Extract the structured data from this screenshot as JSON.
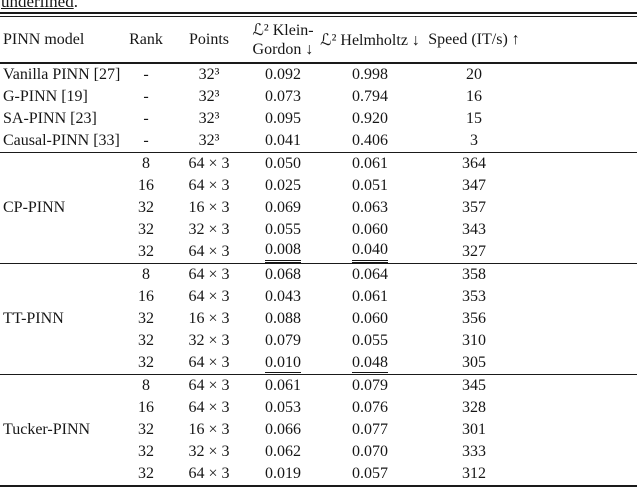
{
  "colors": {
    "background": "#ffffff",
    "text": "#161616",
    "rule": "#1a1a1a"
  },
  "caption": {
    "tail_word": "underlined",
    "period": "."
  },
  "table": {
    "headers": {
      "model": "PINN model",
      "rank": "Rank",
      "points": "Points",
      "kg_line1": "ℒ² Klein-",
      "kg_line2": "Gordon ↓",
      "helmholtz": "ℒ² Helmholtz ↓",
      "speed": "Speed (IT/s) ↑"
    },
    "groups": [
      {
        "rows": [
          {
            "model": "Vanilla PINN [27]",
            "rank": "-",
            "points": "32³",
            "kg": "0.092",
            "helmholtz": "0.998",
            "speed": "20"
          },
          {
            "model": "G-PINN [19]",
            "rank": "-",
            "points": "32³",
            "kg": "0.073",
            "helmholtz": "0.794",
            "speed": "16"
          },
          {
            "model": "SA-PINN [23]",
            "rank": "-",
            "points": "32³",
            "kg": "0.095",
            "helmholtz": "0.920",
            "speed": "15"
          },
          {
            "model": "Causal-PINN [33]",
            "rank": "-",
            "points": "32³",
            "kg": "0.041",
            "helmholtz": "0.406",
            "speed": "3"
          }
        ]
      },
      {
        "model": "CP-PINN",
        "rows": [
          {
            "rank": "8",
            "points": "64 × 3",
            "kg": "0.050",
            "helmholtz": "0.061",
            "speed": "364"
          },
          {
            "rank": "16",
            "points": "64 × 3",
            "kg": "0.025",
            "helmholtz": "0.051",
            "speed": "347"
          },
          {
            "rank": "32",
            "points": "16 × 3",
            "kg": "0.069",
            "helmholtz": "0.063",
            "speed": "357"
          },
          {
            "rank": "32",
            "points": "32 × 3",
            "kg": "0.055",
            "helmholtz": "0.060",
            "speed": "343"
          },
          {
            "rank": "32",
            "points": "64 × 3",
            "kg": "0.008",
            "helmholtz": "0.040",
            "speed": "327",
            "kg_underline": "double",
            "helmholtz_underline": "double"
          }
        ]
      },
      {
        "model": "TT-PINN",
        "rows": [
          {
            "rank": "8",
            "points": "64 × 3",
            "kg": "0.068",
            "helmholtz": "0.064",
            "speed": "358"
          },
          {
            "rank": "16",
            "points": "64 × 3",
            "kg": "0.043",
            "helmholtz": "0.061",
            "speed": "353"
          },
          {
            "rank": "32",
            "points": "16 × 3",
            "kg": "0.088",
            "helmholtz": "0.060",
            "speed": "356"
          },
          {
            "rank": "32",
            "points": "32 × 3",
            "kg": "0.079",
            "helmholtz": "0.055",
            "speed": "310"
          },
          {
            "rank": "32",
            "points": "64 × 3",
            "kg": "0.010",
            "helmholtz": "0.048",
            "speed": "305",
            "kg_underline": "single",
            "helmholtz_underline": "single"
          }
        ]
      },
      {
        "model": "Tucker-PINN",
        "rows": [
          {
            "rank": "8",
            "points": "64 × 3",
            "kg": "0.061",
            "helmholtz": "0.079",
            "speed": "345"
          },
          {
            "rank": "16",
            "points": "64 × 3",
            "kg": "0.053",
            "helmholtz": "0.076",
            "speed": "328"
          },
          {
            "rank": "32",
            "points": "16 × 3",
            "kg": "0.066",
            "helmholtz": "0.077",
            "speed": "301"
          },
          {
            "rank": "32",
            "points": "32 × 3",
            "kg": "0.062",
            "helmholtz": "0.070",
            "speed": "333"
          },
          {
            "rank": "32",
            "points": "64 × 3",
            "kg": "0.019",
            "helmholtz": "0.057",
            "speed": "312"
          }
        ]
      }
    ]
  }
}
